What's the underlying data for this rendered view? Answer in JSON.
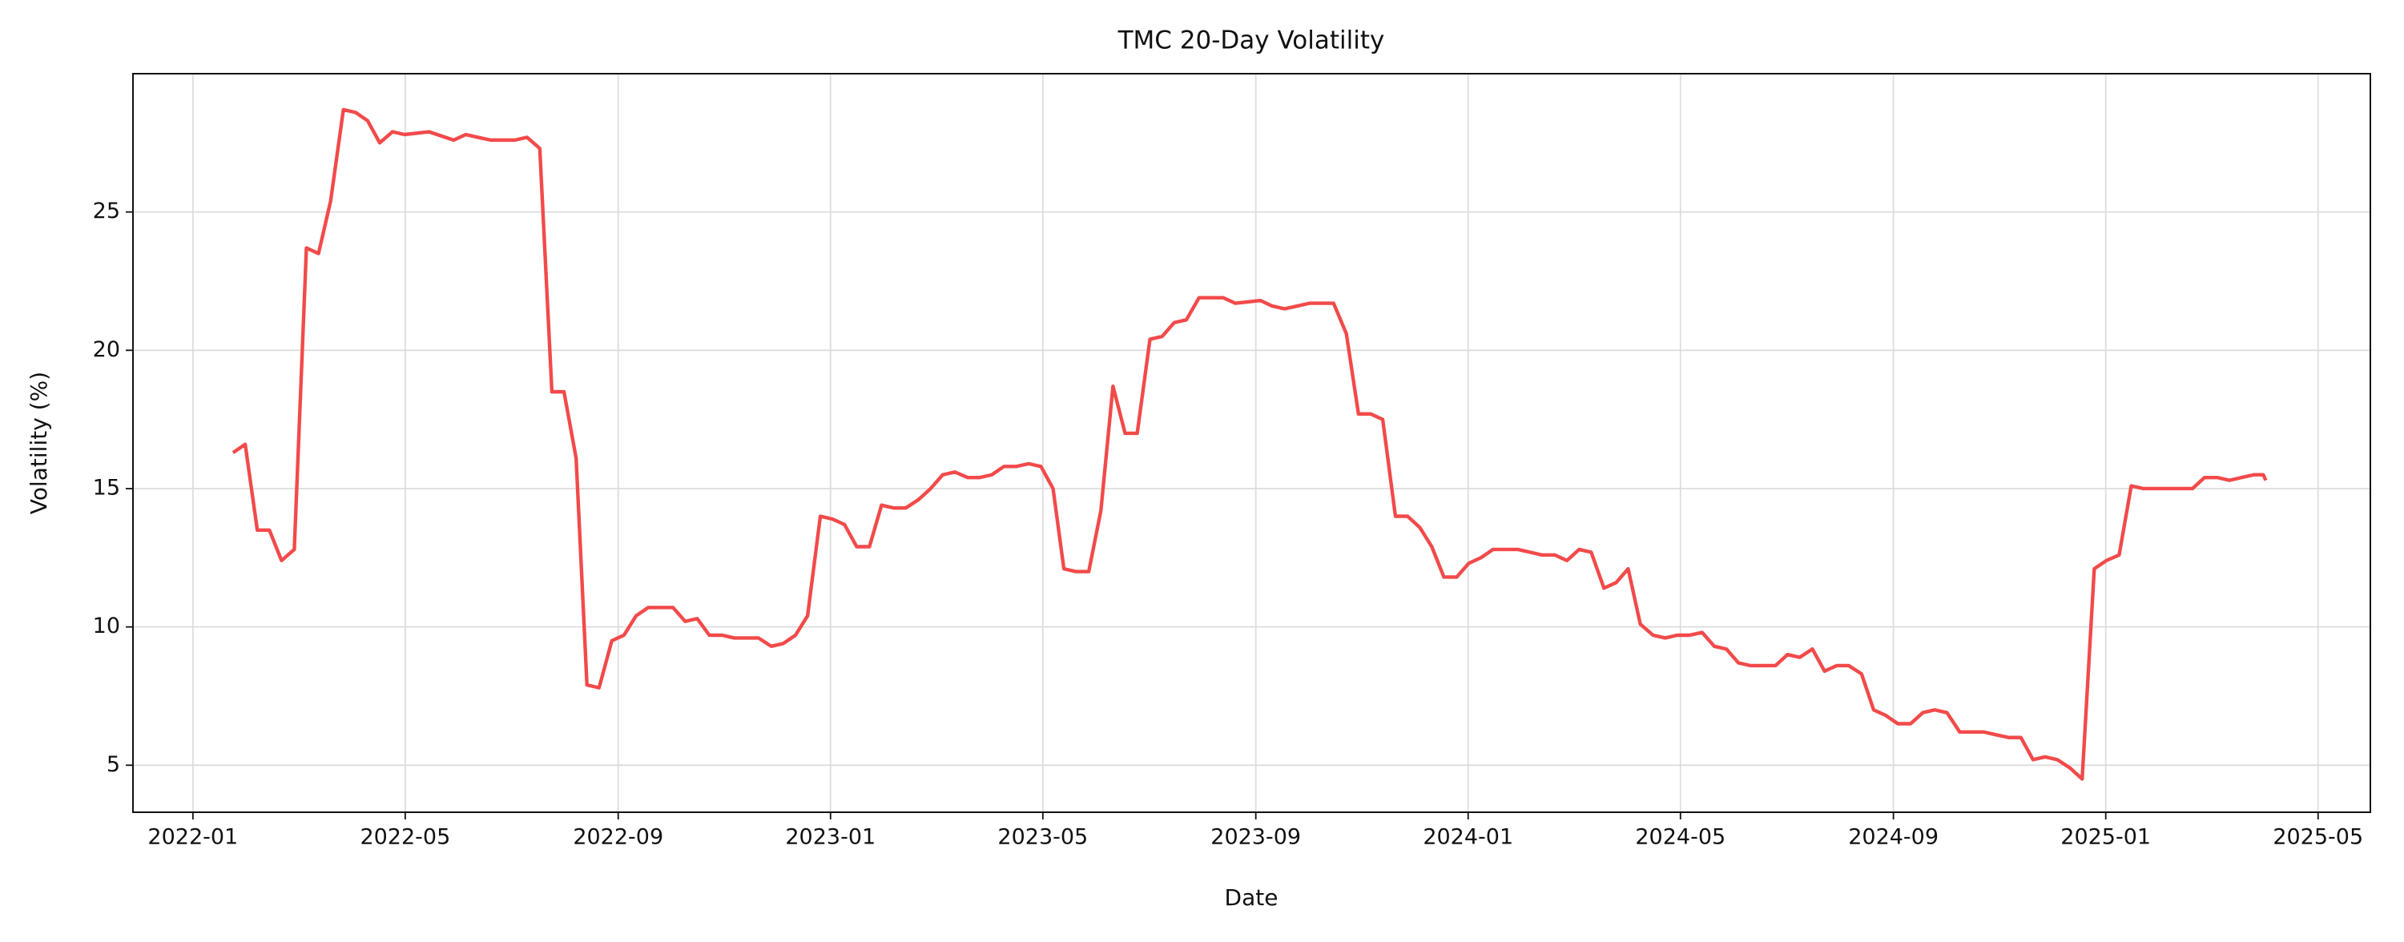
{
  "chart_data": {
    "type": "line",
    "title": "TMC 20-Day Volatility",
    "x_label": "Date",
    "y_label": "Volatility (%)",
    "x": [
      2022.063,
      2022.082,
      2022.101,
      2022.12,
      2022.139,
      2022.159,
      2022.178,
      2022.197,
      2022.216,
      2022.236,
      2022.255,
      2022.274,
      2022.293,
      2022.313,
      2022.332,
      2022.37,
      2022.409,
      2022.428,
      2022.447,
      2022.467,
      2022.505,
      2022.524,
      2022.544,
      2022.563,
      2022.582,
      2022.601,
      2022.618,
      2022.637,
      2022.657,
      2022.676,
      2022.695,
      2022.714,
      2022.753,
      2022.772,
      2022.791,
      2022.81,
      2022.83,
      2022.849,
      2022.887,
      2022.907,
      2022.926,
      2022.945,
      2022.964,
      2022.984,
      2023.003,
      2023.022,
      2023.041,
      2023.061,
      2023.08,
      2023.099,
      2023.118,
      2023.138,
      2023.157,
      2023.176,
      2023.195,
      2023.215,
      2023.234,
      2023.253,
      2023.272,
      2023.291,
      2023.311,
      2023.33,
      2023.349,
      2023.366,
      2023.385,
      2023.405,
      2023.424,
      2023.443,
      2023.462,
      2023.481,
      2023.501,
      2023.52,
      2023.539,
      2023.558,
      2023.578,
      2023.616,
      2023.635,
      2023.674,
      2023.693,
      2023.712,
      2023.732,
      2023.751,
      2023.789,
      2023.809,
      2023.828,
      2023.847,
      2023.866,
      2023.886,
      2023.905,
      2023.924,
      2023.943,
      2023.962,
      2023.982,
      2024.001,
      2024.02,
      2024.039,
      2024.059,
      2024.078,
      2024.097,
      2024.116,
      2024.136,
      2024.155,
      2024.174,
      2024.193,
      2024.213,
      2024.232,
      2024.251,
      2024.27,
      2024.29,
      2024.309,
      2024.328,
      2024.347,
      2024.367,
      2024.386,
      2024.405,
      2024.424,
      2024.443,
      2024.482,
      2024.501,
      2024.52,
      2024.54,
      2024.559,
      2024.578,
      2024.597,
      2024.617,
      2024.636,
      2024.655,
      2024.674,
      2024.694,
      2024.713,
      2024.732,
      2024.751,
      2024.771,
      2024.809,
      2024.828,
      2024.848,
      2024.867,
      2024.886,
      2024.905,
      2024.924,
      2024.944,
      2024.963,
      2024.982,
      2025.001,
      2025.021,
      2025.04,
      2025.059,
      2025.078,
      2025.098,
      2025.136,
      2025.155,
      2025.175,
      2025.194,
      2025.213,
      2025.232,
      2025.247,
      2025.251
    ],
    "values": [
      16.3,
      16.6,
      13.5,
      13.5,
      12.4,
      12.8,
      23.7,
      23.5,
      25.4,
      28.7,
      28.6,
      28.3,
      27.5,
      27.9,
      27.8,
      27.9,
      27.6,
      27.8,
      27.7,
      27.6,
      27.6,
      27.7,
      27.3,
      18.5,
      18.5,
      16.1,
      7.9,
      7.8,
      9.5,
      9.7,
      10.4,
      10.7,
      10.7,
      10.2,
      10.3,
      9.7,
      9.7,
      9.6,
      9.6,
      9.3,
      9.4,
      9.7,
      10.4,
      14.0,
      13.9,
      13.7,
      12.9,
      12.9,
      14.4,
      14.3,
      14.3,
      14.6,
      15.0,
      15.5,
      15.6,
      15.4,
      15.4,
      15.5,
      15.8,
      15.8,
      15.9,
      15.8,
      15.0,
      12.1,
      12.0,
      12.0,
      14.2,
      18.7,
      17.0,
      17.0,
      20.4,
      20.5,
      21.0,
      21.1,
      21.9,
      21.9,
      21.7,
      21.8,
      21.6,
      21.5,
      21.6,
      21.7,
      21.7,
      20.6,
      17.7,
      17.7,
      17.5,
      14.0,
      14.0,
      13.6,
      12.9,
      11.8,
      11.8,
      12.3,
      12.5,
      12.8,
      12.8,
      12.8,
      12.7,
      12.6,
      12.6,
      12.4,
      12.8,
      12.7,
      11.4,
      11.6,
      12.1,
      10.1,
      9.7,
      9.6,
      9.7,
      9.7,
      9.8,
      9.3,
      9.2,
      8.7,
      8.6,
      8.6,
      9.0,
      8.9,
      9.2,
      8.4,
      8.6,
      8.6,
      8.3,
      7.0,
      6.8,
      6.5,
      6.5,
      6.9,
      7.0,
      6.9,
      6.2,
      6.2,
      6.1,
      6.0,
      6.0,
      5.2,
      5.3,
      5.2,
      4.9,
      4.5,
      12.1,
      12.4,
      12.6,
      15.1,
      15.0,
      15.0,
      15.0,
      15.0,
      15.4,
      15.4,
      15.3,
      15.4,
      15.5,
      15.5,
      15.3
    ],
    "color": "#f24a4a",
    "xlim": [
      2021.906,
      2025.415
    ],
    "xticks": [
      {
        "value": 2022.0,
        "label": "2022-01"
      },
      {
        "value": 2022.333,
        "label": "2022-05"
      },
      {
        "value": 2022.667,
        "label": "2022-09"
      },
      {
        "value": 2023.0,
        "label": "2023-01"
      },
      {
        "value": 2023.333,
        "label": "2023-05"
      },
      {
        "value": 2023.667,
        "label": "2023-09"
      },
      {
        "value": 2024.0,
        "label": "2024-01"
      },
      {
        "value": 2024.333,
        "label": "2024-05"
      },
      {
        "value": 2024.667,
        "label": "2024-09"
      },
      {
        "value": 2025.0,
        "label": "2025-01"
      },
      {
        "value": 2025.333,
        "label": "2025-05"
      }
    ],
    "ylim": [
      3.3,
      30
    ],
    "yticks": [
      5,
      10,
      15,
      20,
      25
    ],
    "grid": true
  }
}
